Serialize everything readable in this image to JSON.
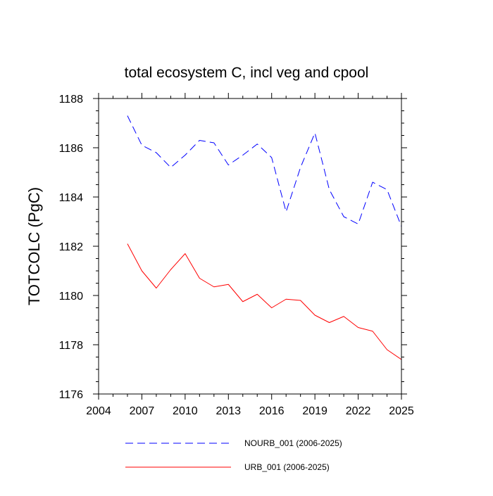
{
  "chart_data": {
    "type": "line",
    "title": "total ecosystem C, incl veg and cpool",
    "xlabel": "",
    "ylabel": "TOTCOLC  (PgC)",
    "xlim": [
      2004,
      2025
    ],
    "ylim": [
      1176,
      1188
    ],
    "xticks": [
      2004,
      2007,
      2010,
      2013,
      2016,
      2019,
      2022,
      2025
    ],
    "xtick_labels": [
      "2004",
      "2007",
      "2010",
      "2013",
      "2016",
      "2019",
      "2022",
      "2025"
    ],
    "yticks": [
      1176,
      1178,
      1180,
      1182,
      1184,
      1186,
      1188
    ],
    "ytick_labels": [
      "1176",
      "1178",
      "1180",
      "1182",
      "1184",
      "1186",
      "1188"
    ],
    "x": [
      2006,
      2007,
      2008,
      2009,
      2010,
      2011,
      2012,
      2013,
      2014,
      2015,
      2016,
      2017,
      2018,
      2019,
      2020,
      2021,
      2022,
      2023,
      2024,
      2025
    ],
    "series": [
      {
        "name": "NOURB_001 (2006-2025)",
        "color": "#0000ff",
        "dash": "dashed",
        "values": [
          1187.3,
          1186.1,
          1185.8,
          1185.2,
          1185.7,
          1186.3,
          1186.2,
          1185.3,
          1185.7,
          1186.15,
          1185.6,
          1183.4,
          1185.2,
          1186.6,
          1184.3,
          1183.2,
          1182.9,
          1184.6,
          1184.3,
          1182.8
        ]
      },
      {
        "name": "URB_001 (2006-2025)",
        "color": "#ff0000",
        "dash": "solid",
        "values": [
          1182.1,
          1181.0,
          1180.3,
          1181.05,
          1181.7,
          1180.7,
          1180.35,
          1180.45,
          1179.75,
          1180.05,
          1179.5,
          1179.85,
          1179.8,
          1179.2,
          1178.9,
          1179.15,
          1178.7,
          1178.55,
          1177.8,
          1177.4
        ]
      }
    ],
    "grid": false,
    "legend_position": "bottom"
  }
}
